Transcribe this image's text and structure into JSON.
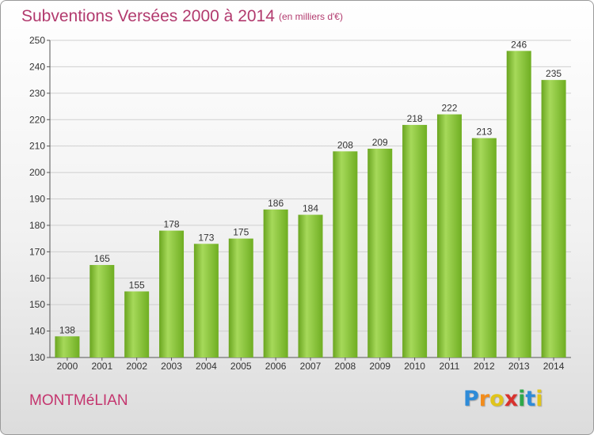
{
  "title": "Subventions Versées 2000 à 2014",
  "subtitle": "(en milliers d'€)",
  "place": "MONTMéLIAN",
  "logo": {
    "letters": [
      "P",
      "r",
      "o",
      "x",
      "i",
      "t",
      "i"
    ],
    "colors": [
      "#2e8bd8",
      "#f28c1c",
      "#e0c41a",
      "#d8322e",
      "#2ea84a",
      "#2e8bd8",
      "#e0c41a"
    ]
  },
  "colors": {
    "bar": "#7dbb2c",
    "bar_light": "#a6d95a",
    "title": "#b23a6e",
    "grid": "#cfcfcf"
  },
  "chart_data": {
    "type": "bar",
    "categories": [
      "2000",
      "2001",
      "2002",
      "2003",
      "2004",
      "2005",
      "2006",
      "2007",
      "2008",
      "2009",
      "2010",
      "2011",
      "2012",
      "2013",
      "2014"
    ],
    "values": [
      138,
      165,
      155,
      178,
      173,
      175,
      186,
      184,
      208,
      209,
      218,
      222,
      213,
      246,
      235
    ],
    "ylim": [
      130,
      250
    ],
    "yticks": [
      130,
      140,
      150,
      160,
      170,
      180,
      190,
      200,
      210,
      220,
      230,
      240,
      250
    ],
    "grid": true,
    "legend": "none"
  }
}
